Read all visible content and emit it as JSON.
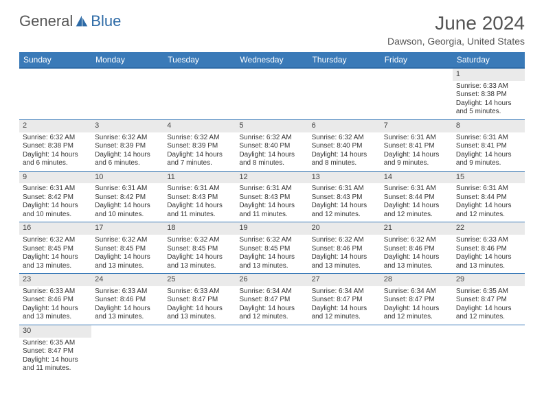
{
  "logo": {
    "text1": "General",
    "text2": "Blue"
  },
  "header": {
    "title": "June 2024",
    "location": "Dawson, Georgia, United States"
  },
  "colors": {
    "header_bg": "#3a7ab8",
    "header_border": "#2d6aa6",
    "daynum_bg": "#eaeaea",
    "text": "#333333",
    "title": "#555555"
  },
  "dayNames": [
    "Sunday",
    "Monday",
    "Tuesday",
    "Wednesday",
    "Thursday",
    "Friday",
    "Saturday"
  ],
  "weeks": [
    [
      null,
      null,
      null,
      null,
      null,
      null,
      {
        "n": "1",
        "sr": "Sunrise: 6:33 AM",
        "ss": "Sunset: 8:38 PM",
        "dl": "Daylight: 14 hours and 5 minutes."
      }
    ],
    [
      {
        "n": "2",
        "sr": "Sunrise: 6:32 AM",
        "ss": "Sunset: 8:38 PM",
        "dl": "Daylight: 14 hours and 6 minutes."
      },
      {
        "n": "3",
        "sr": "Sunrise: 6:32 AM",
        "ss": "Sunset: 8:39 PM",
        "dl": "Daylight: 14 hours and 6 minutes."
      },
      {
        "n": "4",
        "sr": "Sunrise: 6:32 AM",
        "ss": "Sunset: 8:39 PM",
        "dl": "Daylight: 14 hours and 7 minutes."
      },
      {
        "n": "5",
        "sr": "Sunrise: 6:32 AM",
        "ss": "Sunset: 8:40 PM",
        "dl": "Daylight: 14 hours and 8 minutes."
      },
      {
        "n": "6",
        "sr": "Sunrise: 6:32 AM",
        "ss": "Sunset: 8:40 PM",
        "dl": "Daylight: 14 hours and 8 minutes."
      },
      {
        "n": "7",
        "sr": "Sunrise: 6:31 AM",
        "ss": "Sunset: 8:41 PM",
        "dl": "Daylight: 14 hours and 9 minutes."
      },
      {
        "n": "8",
        "sr": "Sunrise: 6:31 AM",
        "ss": "Sunset: 8:41 PM",
        "dl": "Daylight: 14 hours and 9 minutes."
      }
    ],
    [
      {
        "n": "9",
        "sr": "Sunrise: 6:31 AM",
        "ss": "Sunset: 8:42 PM",
        "dl": "Daylight: 14 hours and 10 minutes."
      },
      {
        "n": "10",
        "sr": "Sunrise: 6:31 AM",
        "ss": "Sunset: 8:42 PM",
        "dl": "Daylight: 14 hours and 10 minutes."
      },
      {
        "n": "11",
        "sr": "Sunrise: 6:31 AM",
        "ss": "Sunset: 8:43 PM",
        "dl": "Daylight: 14 hours and 11 minutes."
      },
      {
        "n": "12",
        "sr": "Sunrise: 6:31 AM",
        "ss": "Sunset: 8:43 PM",
        "dl": "Daylight: 14 hours and 11 minutes."
      },
      {
        "n": "13",
        "sr": "Sunrise: 6:31 AM",
        "ss": "Sunset: 8:43 PM",
        "dl": "Daylight: 14 hours and 12 minutes."
      },
      {
        "n": "14",
        "sr": "Sunrise: 6:31 AM",
        "ss": "Sunset: 8:44 PM",
        "dl": "Daylight: 14 hours and 12 minutes."
      },
      {
        "n": "15",
        "sr": "Sunrise: 6:31 AM",
        "ss": "Sunset: 8:44 PM",
        "dl": "Daylight: 14 hours and 12 minutes."
      }
    ],
    [
      {
        "n": "16",
        "sr": "Sunrise: 6:32 AM",
        "ss": "Sunset: 8:45 PM",
        "dl": "Daylight: 14 hours and 13 minutes."
      },
      {
        "n": "17",
        "sr": "Sunrise: 6:32 AM",
        "ss": "Sunset: 8:45 PM",
        "dl": "Daylight: 14 hours and 13 minutes."
      },
      {
        "n": "18",
        "sr": "Sunrise: 6:32 AM",
        "ss": "Sunset: 8:45 PM",
        "dl": "Daylight: 14 hours and 13 minutes."
      },
      {
        "n": "19",
        "sr": "Sunrise: 6:32 AM",
        "ss": "Sunset: 8:45 PM",
        "dl": "Daylight: 14 hours and 13 minutes."
      },
      {
        "n": "20",
        "sr": "Sunrise: 6:32 AM",
        "ss": "Sunset: 8:46 PM",
        "dl": "Daylight: 14 hours and 13 minutes."
      },
      {
        "n": "21",
        "sr": "Sunrise: 6:32 AM",
        "ss": "Sunset: 8:46 PM",
        "dl": "Daylight: 14 hours and 13 minutes."
      },
      {
        "n": "22",
        "sr": "Sunrise: 6:33 AM",
        "ss": "Sunset: 8:46 PM",
        "dl": "Daylight: 14 hours and 13 minutes."
      }
    ],
    [
      {
        "n": "23",
        "sr": "Sunrise: 6:33 AM",
        "ss": "Sunset: 8:46 PM",
        "dl": "Daylight: 14 hours and 13 minutes."
      },
      {
        "n": "24",
        "sr": "Sunrise: 6:33 AM",
        "ss": "Sunset: 8:46 PM",
        "dl": "Daylight: 14 hours and 13 minutes."
      },
      {
        "n": "25",
        "sr": "Sunrise: 6:33 AM",
        "ss": "Sunset: 8:47 PM",
        "dl": "Daylight: 14 hours and 13 minutes."
      },
      {
        "n": "26",
        "sr": "Sunrise: 6:34 AM",
        "ss": "Sunset: 8:47 PM",
        "dl": "Daylight: 14 hours and 12 minutes."
      },
      {
        "n": "27",
        "sr": "Sunrise: 6:34 AM",
        "ss": "Sunset: 8:47 PM",
        "dl": "Daylight: 14 hours and 12 minutes."
      },
      {
        "n": "28",
        "sr": "Sunrise: 6:34 AM",
        "ss": "Sunset: 8:47 PM",
        "dl": "Daylight: 14 hours and 12 minutes."
      },
      {
        "n": "29",
        "sr": "Sunrise: 6:35 AM",
        "ss": "Sunset: 8:47 PM",
        "dl": "Daylight: 14 hours and 12 minutes."
      }
    ],
    [
      {
        "n": "30",
        "sr": "Sunrise: 6:35 AM",
        "ss": "Sunset: 8:47 PM",
        "dl": "Daylight: 14 hours and 11 minutes."
      },
      null,
      null,
      null,
      null,
      null,
      null
    ]
  ]
}
